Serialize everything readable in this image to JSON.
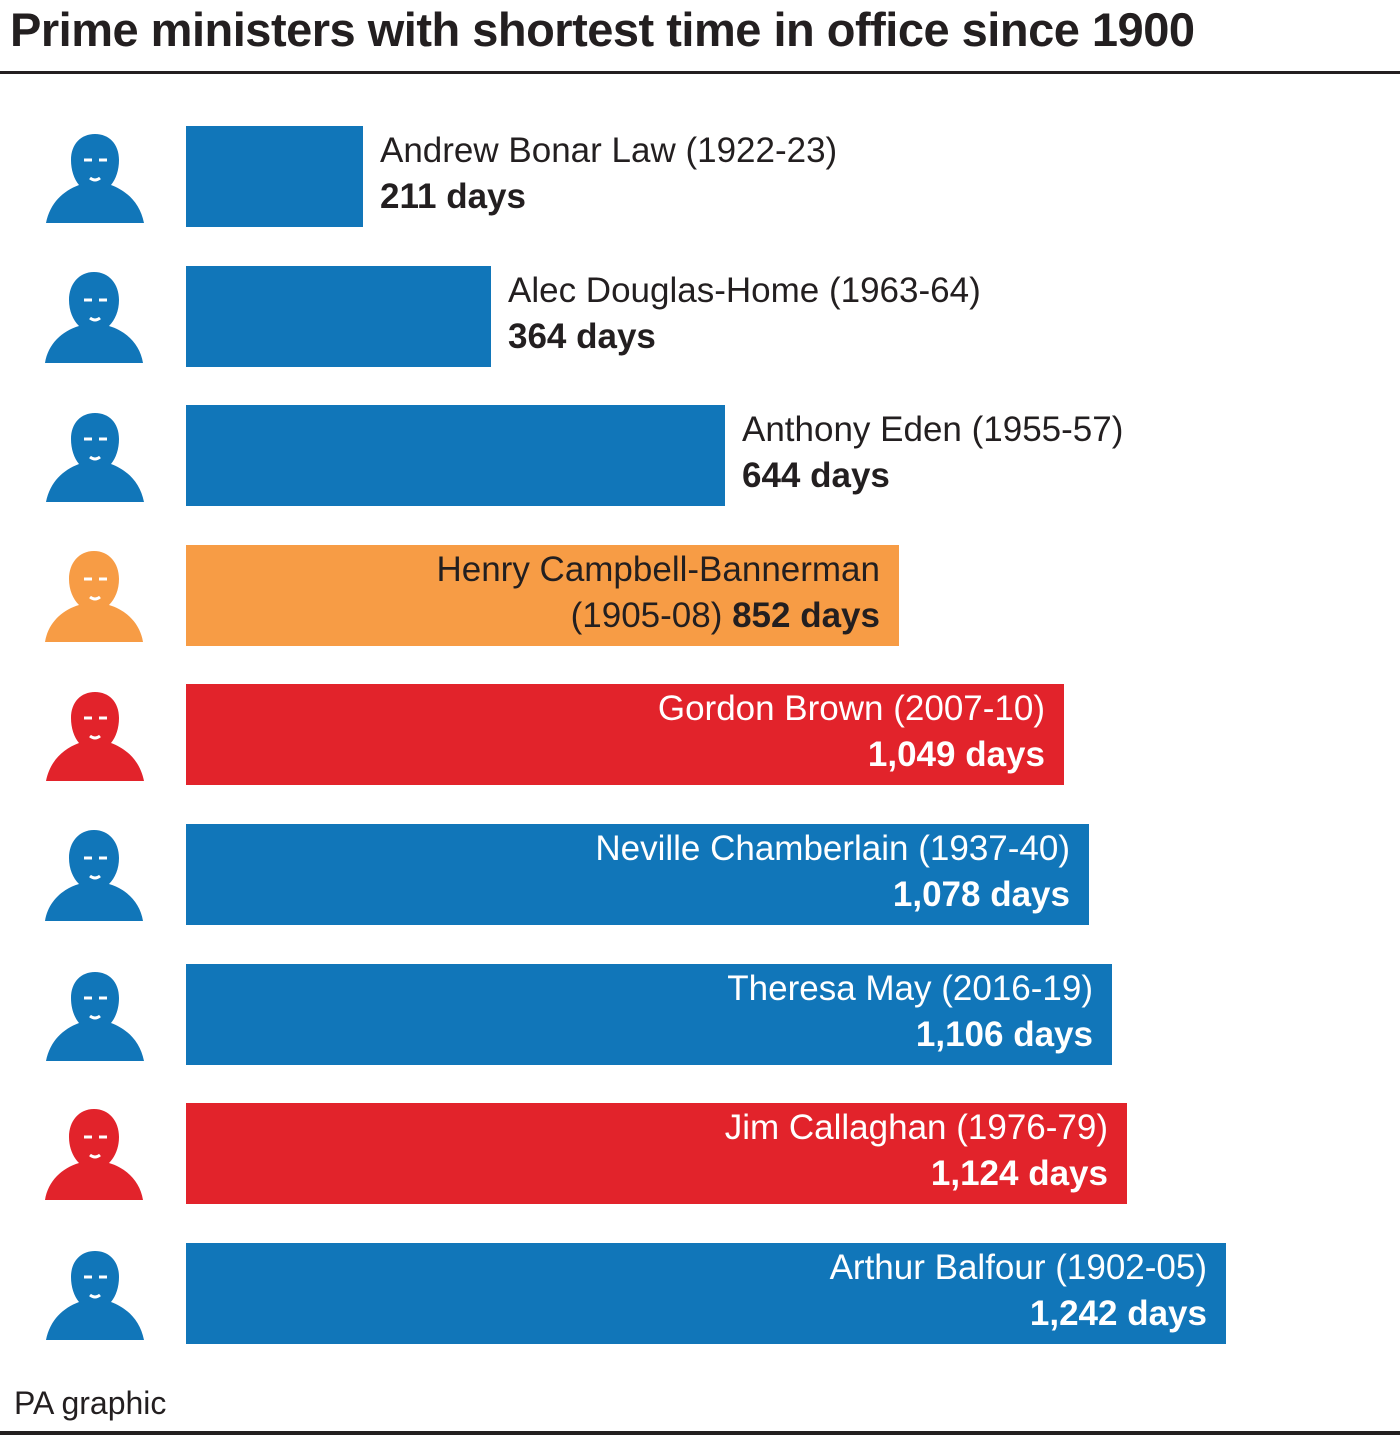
{
  "title": "Prime ministers with shortest time in office since 1900",
  "source": "PA graphic",
  "colors": {
    "blue": "#1176b9",
    "orange": "#f79c45",
    "red": "#e2232b",
    "text": "#231f20"
  },
  "chart_data": {
    "type": "bar",
    "orientation": "horizontal",
    "title": "Prime ministers with shortest time in office since 1900",
    "unit": "days",
    "bars": [
      {
        "name": "Andrew Bonar Law (1922-23)",
        "line1": "Andrew Bonar Law (1922-23)",
        "line2_prefix": "",
        "days_label": "211 days",
        "value": 211,
        "color": "blue",
        "label_position": "outside",
        "portrait_icon": "portrait-bonar-law-icon"
      },
      {
        "name": "Alec Douglas-Home (1963-64)",
        "line1": "Alec Douglas-Home (1963-64)",
        "line2_prefix": "",
        "days_label": "364 days",
        "value": 364,
        "color": "blue",
        "label_position": "outside",
        "portrait_icon": "portrait-douglas-home-icon"
      },
      {
        "name": "Anthony Eden (1955-57)",
        "line1": "Anthony Eden (1955-57)",
        "line2_prefix": "",
        "days_label": "644 days",
        "value": 644,
        "color": "blue",
        "label_position": "outside",
        "portrait_icon": "portrait-eden-icon"
      },
      {
        "name": "Henry Campbell-Bannerman (1905-08)",
        "line1": "Henry Campbell-Bannerman",
        "line2_prefix": "(1905-08) ",
        "days_label": "852 days",
        "value": 852,
        "color": "orange",
        "label_position": "inside",
        "text_color": "#231f20",
        "portrait_icon": "portrait-campbell-bannerman-icon"
      },
      {
        "name": "Gordon Brown (2007-10)",
        "line1": "Gordon Brown (2007-10)",
        "line2_prefix": "",
        "days_label": "1,049 days",
        "value": 1049,
        "color": "red",
        "label_position": "inside",
        "text_color": "#ffffff",
        "portrait_icon": "portrait-brown-icon"
      },
      {
        "name": "Neville Chamberlain (1937-40)",
        "line1": "Neville Chamberlain (1937-40)",
        "line2_prefix": "",
        "days_label": "1,078 days",
        "value": 1078,
        "color": "blue",
        "label_position": "inside",
        "text_color": "#ffffff",
        "portrait_icon": "portrait-chamberlain-icon"
      },
      {
        "name": "Theresa May (2016-19)",
        "line1": "Theresa May (2016-19)",
        "line2_prefix": "",
        "days_label": "1,106 days",
        "value": 1106,
        "color": "blue",
        "label_position": "inside",
        "text_color": "#ffffff",
        "portrait_icon": "portrait-may-icon"
      },
      {
        "name": "Jim Callaghan (1976-79)",
        "line1": "Jim Callaghan (1976-79)",
        "line2_prefix": "",
        "days_label": "1,124 days",
        "value": 1124,
        "color": "red",
        "label_position": "inside",
        "text_color": "#ffffff",
        "portrait_icon": "portrait-callaghan-icon"
      },
      {
        "name": "Arthur Balfour (1902-05)",
        "line1": "Arthur Balfour (1902-05)",
        "line2_prefix": "",
        "days_label": "1,242 days",
        "value": 1242,
        "color": "blue",
        "label_position": "inside",
        "text_color": "#ffffff",
        "portrait_icon": "portrait-balfour-icon"
      }
    ]
  }
}
